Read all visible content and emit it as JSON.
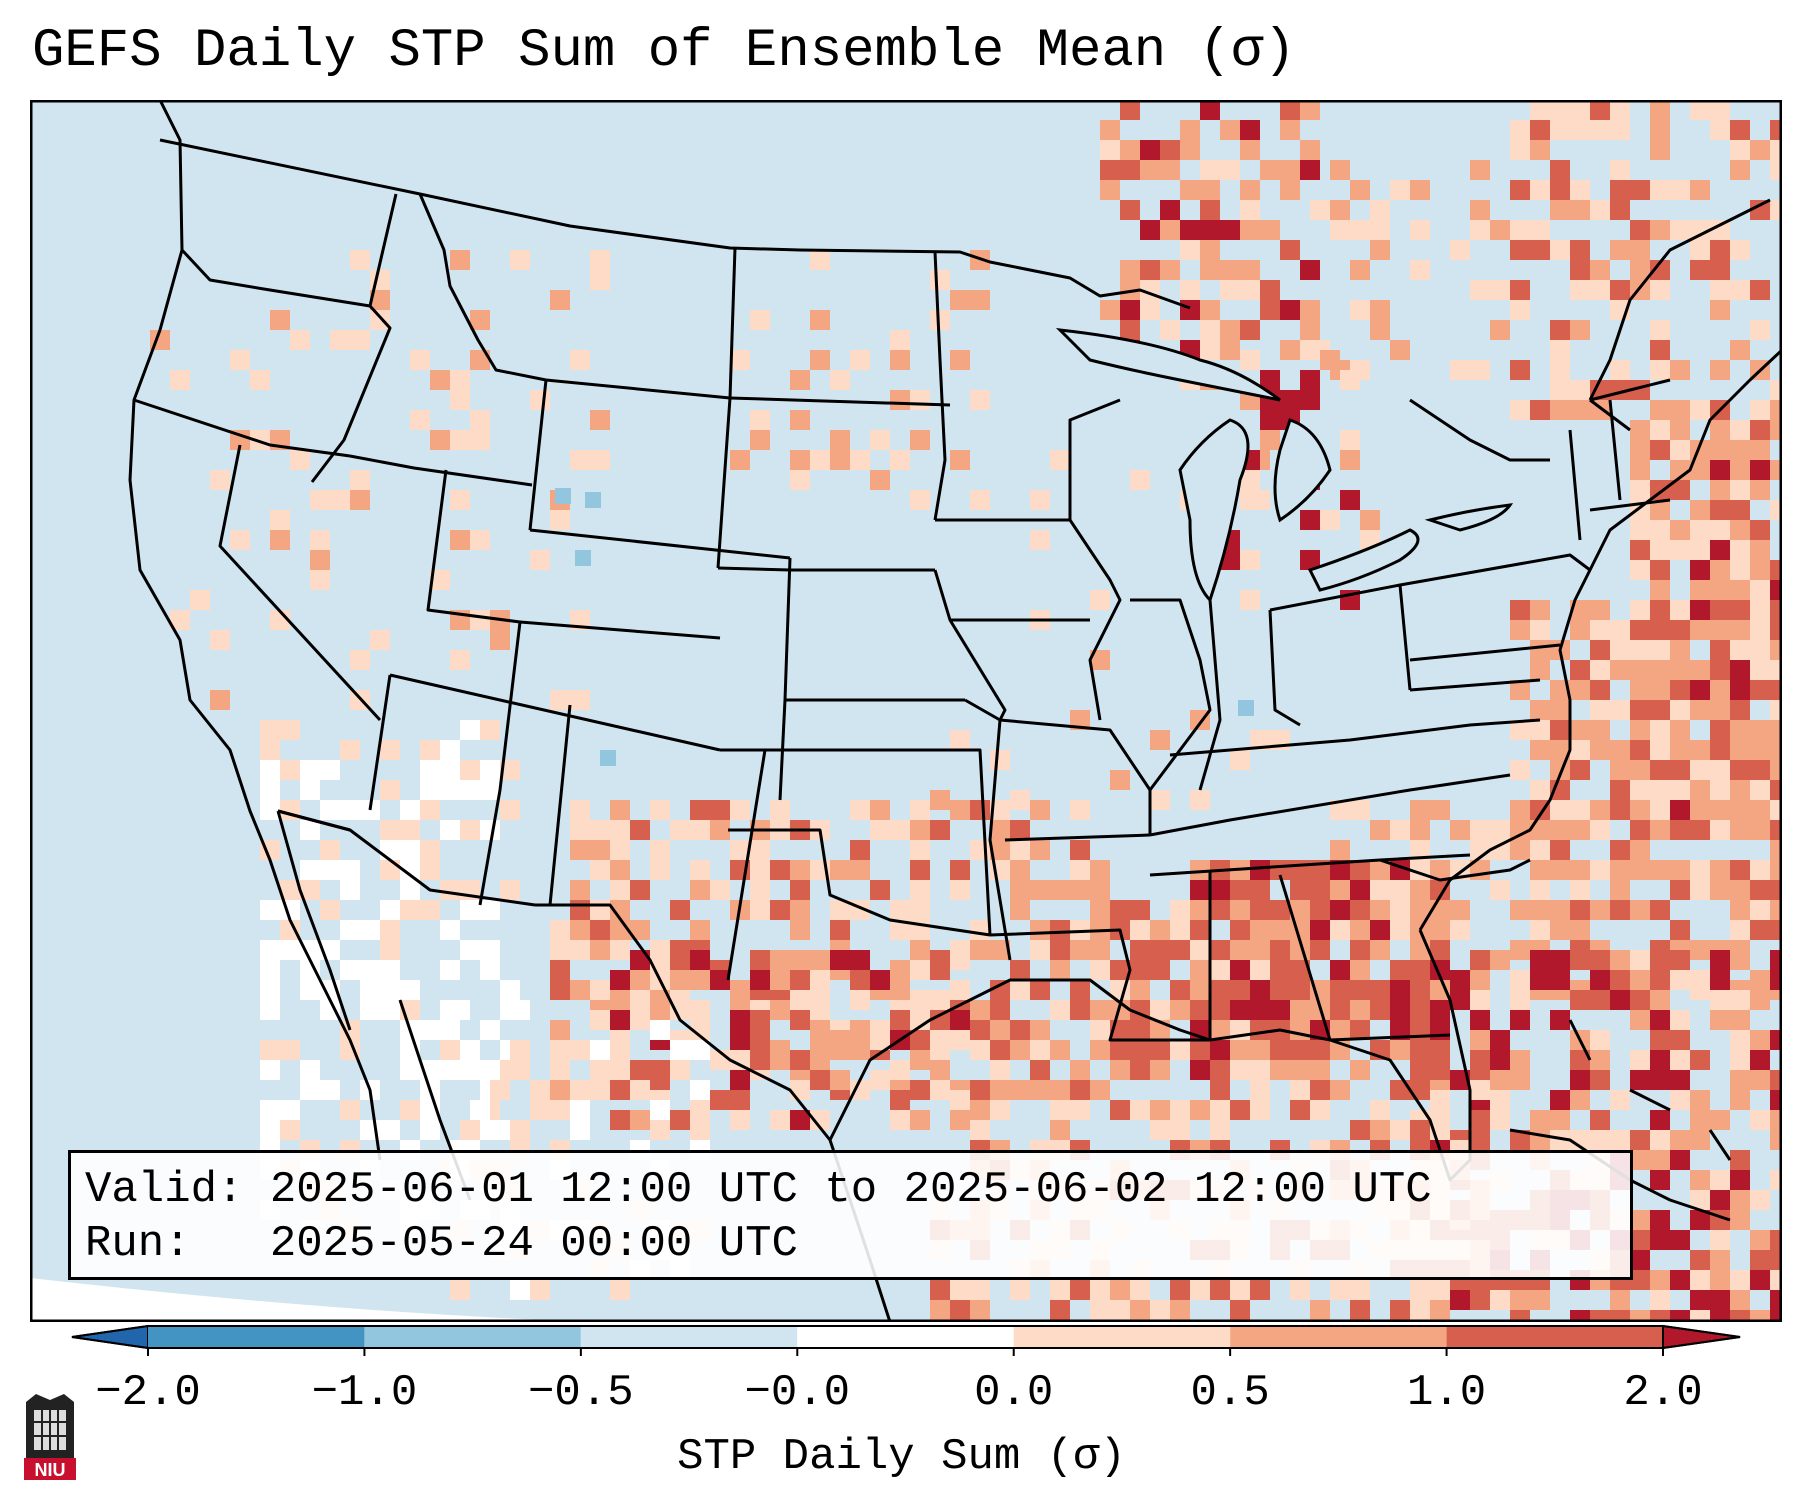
{
  "title": "GEFS Daily STP Sum of Ensemble Mean (σ)",
  "info": {
    "valid_label": "Valid:",
    "valid_value": "2025-06-01 12:00 UTC to 2025-06-02 12:00 UTC",
    "run_label": "Run:",
    "run_value": "2025-05-24 00:00 UTC"
  },
  "colorbar": {
    "label": "STP Daily Sum (σ)",
    "ticks": [
      "−2.0",
      "−1.0",
      "−0.5",
      "−0.0",
      "0.0",
      "0.5",
      "1.0",
      "2.0"
    ],
    "colors": [
      "#2166ac",
      "#4393c3",
      "#92c5de",
      "#d1e5f0",
      "#ffffff",
      "#fddbc7",
      "#f4a582",
      "#d6604d",
      "#b2182b"
    ],
    "extend": "both"
  },
  "logo": {
    "text": "NIU",
    "color": "#c8102e"
  },
  "map": {
    "projection": "Lambert conformal CONUS",
    "background_color": "#d1e5f0",
    "features": [
      "coastlines",
      "state borders",
      "country borders",
      "great lakes"
    ]
  }
}
